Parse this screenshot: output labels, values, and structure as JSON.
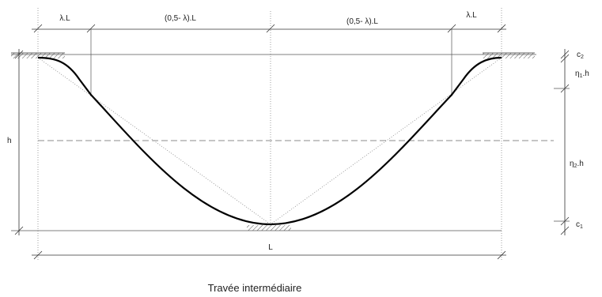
{
  "labels": {
    "lambda_l_left": "λ.L",
    "mid_left": "(0,5- λ).L",
    "mid_right": "(0,5- λ).L",
    "lambda_l_right": "λ.L",
    "h": "h",
    "c2": "c",
    "c2_sub": "2",
    "eta1_main": "η",
    "eta1_sub": "1",
    "eta1_tail": ".h",
    "eta2_main": "η",
    "eta2_sub": "2",
    "eta2_tail": ".h",
    "c1": "c",
    "c1_sub": "1",
    "span": "L"
  },
  "caption": "Travée intermédiaire"
}
